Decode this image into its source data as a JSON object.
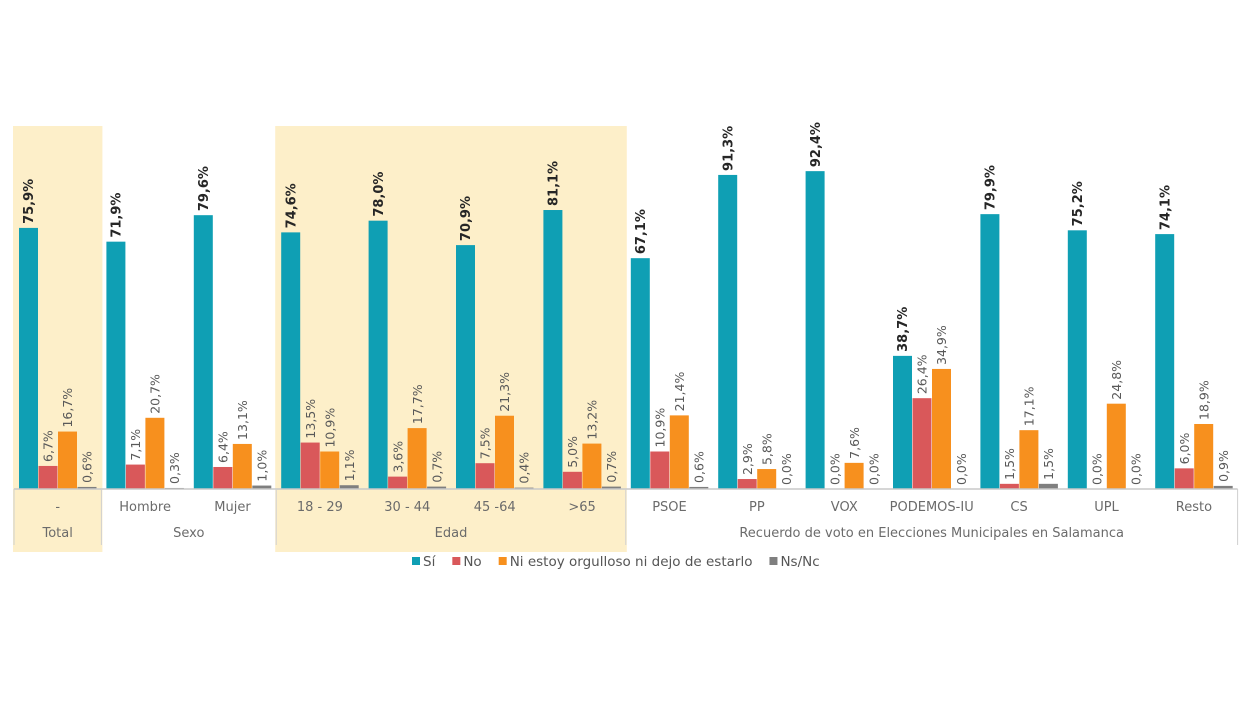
{
  "chart_data": {
    "type": "bar",
    "categories": [
      "-",
      "Hombre",
      "Mujer",
      "18 - 29",
      "30 - 44",
      "45 -64",
      ">65",
      "PSOE",
      "PP",
      "VOX",
      "PODEMOS-IU",
      "CS",
      "UPL",
      "Resto"
    ],
    "groups": [
      {
        "label": "Total",
        "span": [
          0,
          0
        ],
        "highlight": true
      },
      {
        "label": "Sexo",
        "span": [
          1,
          2
        ],
        "highlight": false
      },
      {
        "label": "Edad",
        "span": [
          3,
          6
        ],
        "highlight": true
      },
      {
        "label": "Recuerdo de voto en Elecciones Municipales en Salamanca",
        "span": [
          7,
          13
        ],
        "highlight": false
      }
    ],
    "series": [
      {
        "name": "Sí",
        "color": "#0f9fb4",
        "values": [
          75.9,
          71.9,
          79.6,
          74.6,
          78.0,
          70.9,
          81.1,
          67.1,
          91.3,
          92.4,
          38.7,
          79.9,
          75.2,
          74.1
        ]
      },
      {
        "name": "No",
        "color": "#d9585a",
        "values": [
          6.7,
          7.1,
          6.4,
          13.5,
          3.6,
          7.5,
          5.0,
          10.9,
          2.9,
          0.0,
          26.4,
          1.5,
          0.0,
          6.0
        ]
      },
      {
        "name": "Ni estoy orgulloso ni dejo de estarlo",
        "color": "#f7901e",
        "values": [
          16.7,
          20.7,
          13.1,
          10.9,
          17.7,
          21.3,
          13.2,
          21.4,
          5.8,
          7.6,
          34.9,
          17.1,
          24.8,
          18.9
        ]
      },
      {
        "name": "Ns/Nc",
        "color": "#7f7f7f",
        "values": [
          0.6,
          0.3,
          1.0,
          1.1,
          0.7,
          0.4,
          0.7,
          0.6,
          0.0,
          0.0,
          0.0,
          1.5,
          0.0,
          0.9
        ]
      }
    ],
    "value_format": "percent with comma decimal",
    "highlight_color": "#fdefc9",
    "ylim": [
      0,
      100
    ],
    "legend": "bottom",
    "grid": false
  }
}
